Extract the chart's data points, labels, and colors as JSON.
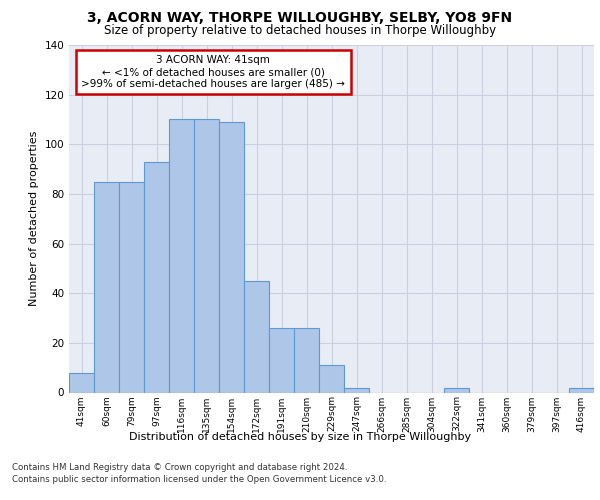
{
  "title1": "3, ACORN WAY, THORPE WILLOUGHBY, SELBY, YO8 9FN",
  "title2": "Size of property relative to detached houses in Thorpe Willoughby",
  "xlabel": "Distribution of detached houses by size in Thorpe Willoughby",
  "ylabel": "Number of detached properties",
  "categories": [
    "41sqm",
    "60sqm",
    "79sqm",
    "97sqm",
    "116sqm",
    "135sqm",
    "154sqm",
    "172sqm",
    "191sqm",
    "210sqm",
    "229sqm",
    "247sqm",
    "266sqm",
    "285sqm",
    "304sqm",
    "322sqm",
    "341sqm",
    "360sqm",
    "379sqm",
    "397sqm",
    "416sqm"
  ],
  "values": [
    8,
    85,
    85,
    93,
    110,
    110,
    109,
    45,
    26,
    26,
    11,
    2,
    0,
    0,
    0,
    2,
    0,
    0,
    0,
    0,
    2
  ],
  "bar_color": "#aec6e8",
  "bar_edge_color": "#5b9bd5",
  "annotation_text": "3 ACORN WAY: 41sqm\n← <1% of detached houses are smaller (0)\n>99% of semi-detached houses are larger (485) →",
  "annotation_box_color": "#ffffff",
  "annotation_box_edge_color": "#cc0000",
  "ylim": [
    0,
    140
  ],
  "yticks": [
    0,
    20,
    40,
    60,
    80,
    100,
    120,
    140
  ],
  "grid_color": "#cbcfe0",
  "bg_color": "#e8ecf5",
  "footnote1": "Contains HM Land Registry data © Crown copyright and database right 2024.",
  "footnote2": "Contains public sector information licensed under the Open Government Licence v3.0."
}
